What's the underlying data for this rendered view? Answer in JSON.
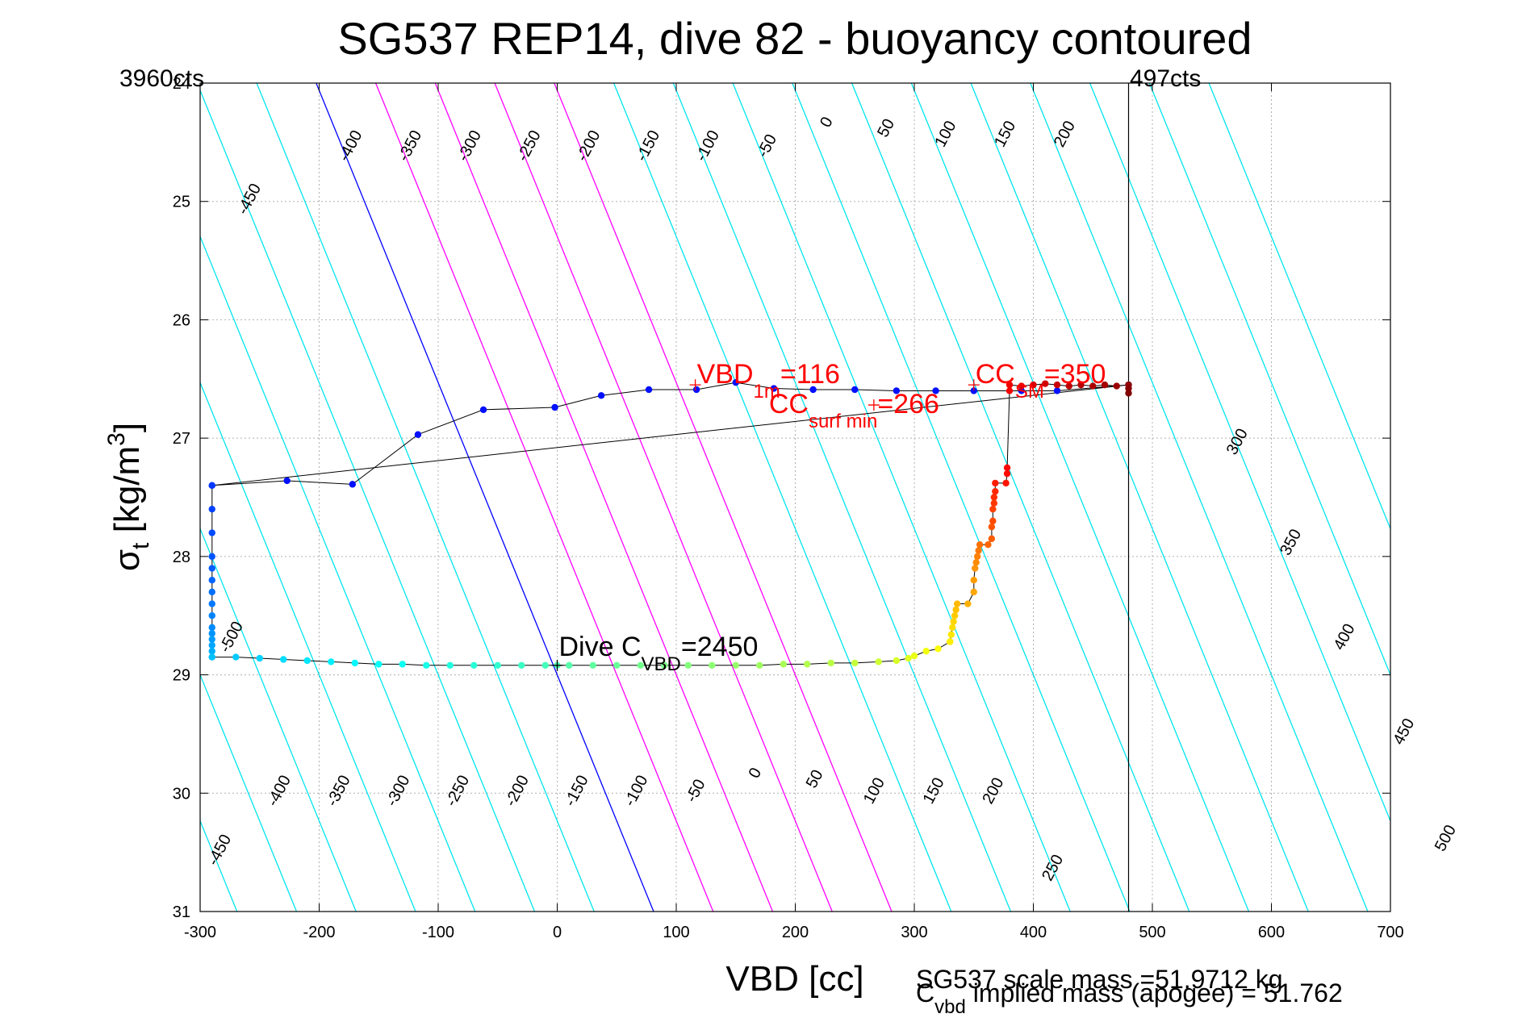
{
  "chart_data": {
    "type": "scatter",
    "title": "SG537 REP14, dive 82 - buoyancy contoured",
    "xlabel": "VBD [cc]",
    "ylabel": {
      "base": "σ",
      "sub": "t",
      "unit_pre": " [kg/m",
      "unit_sup": "3",
      "unit_post": "]"
    },
    "xlim": [
      -300,
      700
    ],
    "ylim": [
      31,
      24
    ],
    "y_reversed": true,
    "x_ticks": [
      -300,
      -200,
      -100,
      0,
      100,
      200,
      300,
      400,
      500,
      600,
      700
    ],
    "y_ticks": [
      24,
      25,
      26,
      27,
      28,
      29,
      30,
      31
    ],
    "grid": true,
    "corner_labels": {
      "left": "3960cts",
      "right": "497cts"
    },
    "contours": {
      "slope_cc_per_sigma": 40.5,
      "reference": {
        "x": 0,
        "y": 29
      },
      "spacing_cc": 50,
      "levels": [
        -500,
        -450,
        -400,
        -350,
        -300,
        -250,
        -200,
        -150,
        -100,
        -50,
        0,
        50,
        100,
        150,
        200,
        250,
        300,
        350,
        400,
        450,
        500,
        550,
        600,
        650,
        700,
        750
      ],
      "neutral_color": "#0000ff",
      "negative_color": "#00e5ee",
      "positive_color": "#ff00ff",
      "positive_limit": 200,
      "labels_top": [
        {
          "level": -450,
          "x": -255,
          "y": 25.0
        },
        {
          "level": -400,
          "x": -170,
          "y": 24.55
        },
        {
          "level": -350,
          "x": -120,
          "y": 24.55
        },
        {
          "level": -300,
          "x": -70,
          "y": 24.55
        },
        {
          "level": -250,
          "x": -20,
          "y": 24.55
        },
        {
          "level": -200,
          "x": 30,
          "y": 24.55
        },
        {
          "level": -150,
          "x": 80,
          "y": 24.55
        },
        {
          "level": -100,
          "x": 130,
          "y": 24.55
        },
        {
          "level": -50,
          "x": 180,
          "y": 24.55
        },
        {
          "level": 0,
          "x": 230,
          "y": 24.35
        },
        {
          "level": 50,
          "x": 280,
          "y": 24.4
        },
        {
          "level": 100,
          "x": 330,
          "y": 24.45
        },
        {
          "level": 150,
          "x": 380,
          "y": 24.45
        },
        {
          "level": 200,
          "x": 430,
          "y": 24.45
        },
        {
          "level": 300,
          "x": 575,
          "y": 27.05
        },
        {
          "level": 350,
          "x": 620,
          "y": 27.9
        },
        {
          "level": 400,
          "x": 665,
          "y": 28.7
        },
        {
          "level": 450,
          "x": 715,
          "y": 29.5
        },
        {
          "level": 500,
          "x": 750,
          "y": 30.4
        }
      ],
      "labels_bottom": [
        {
          "level": -500,
          "x": -270,
          "y": 28.7
        },
        {
          "level": -450,
          "x": -280,
          "y": 30.5
        },
        {
          "level": -400,
          "x": -230,
          "y": 30.0
        },
        {
          "level": -350,
          "x": -180,
          "y": 30.0
        },
        {
          "level": -300,
          "x": -130,
          "y": 30.0
        },
        {
          "level": -250,
          "x": -80,
          "y": 30.0
        },
        {
          "level": -200,
          "x": -30,
          "y": 30.0
        },
        {
          "level": -150,
          "x": 20,
          "y": 30.0
        },
        {
          "level": -100,
          "x": 70,
          "y": 30.0
        },
        {
          "level": -50,
          "x": 120,
          "y": 30.0
        },
        {
          "level": 0,
          "x": 170,
          "y": 29.85
        },
        {
          "level": 50,
          "x": 220,
          "y": 29.9
        },
        {
          "level": 100,
          "x": 270,
          "y": 30.0
        },
        {
          "level": 150,
          "x": 320,
          "y": 30.0
        },
        {
          "level": 200,
          "x": 370,
          "y": 30.0
        },
        {
          "level": 250,
          "x": 420,
          "y": 30.65
        }
      ]
    },
    "vertical_line_x": 480,
    "annotations": [
      {
        "id": "vbd1m",
        "base": "VBD",
        "sub": "1m",
        "value": "=116",
        "x": 116,
        "y": 26.55,
        "color": "#ff0000"
      },
      {
        "id": "ccsm",
        "base": "CC",
        "sub": "SM",
        "value": "=350",
        "x": 350,
        "y": 26.55,
        "color": "#ff0000"
      },
      {
        "id": "ccsurf",
        "base": "CC",
        "sub": "surf min",
        "value": "=266",
        "x": 266,
        "y": 26.72,
        "color": "#ff0000"
      },
      {
        "id": "divecvbd",
        "base": "Dive C",
        "sub": "VBD",
        "value": "=2450",
        "x": 0,
        "y": 28.92,
        "color": "#000000"
      }
    ],
    "footer": {
      "scale_mass": "SG537 scale mass =51.9712 kg",
      "implied_base": "C",
      "implied_sub": "vbd",
      "implied_rest": " implied mass (apogee) = 51.762"
    },
    "series": [
      {
        "name": "upper",
        "x": [
          -290,
          -227,
          -172,
          -117,
          -62,
          -2,
          37,
          77,
          117,
          150,
          182,
          215,
          250,
          285,
          318,
          350,
          390,
          420,
          480
        ],
        "y": [
          27.4,
          27.36,
          27.39,
          26.97,
          26.76,
          26.74,
          26.64,
          26.59,
          26.59,
          26.53,
          26.58,
          26.59,
          26.59,
          26.6,
          26.6,
          26.6,
          26.6,
          26.6,
          26.55
        ]
      },
      {
        "name": "left",
        "x": [
          -290,
          -290,
          -290,
          -290,
          -290,
          -290,
          -290,
          -290,
          -290,
          -290,
          -290,
          -290,
          -290,
          -290,
          -290
        ],
        "y": [
          27.4,
          27.6,
          27.8,
          28.0,
          28.1,
          28.2,
          28.3,
          28.4,
          28.5,
          28.6,
          28.65,
          28.7,
          28.75,
          28.8,
          28.85
        ]
      },
      {
        "name": "bottom",
        "x": [
          -290,
          -270,
          -250,
          -230,
          -210,
          -190,
          -170,
          -150,
          -130,
          -110,
          -90,
          -70,
          -50,
          -30,
          -10,
          0,
          10,
          30,
          50,
          70,
          90,
          110,
          130,
          150,
          170,
          190,
          210,
          230,
          250,
          270,
          285,
          295,
          300,
          310,
          320,
          330
        ],
        "y": [
          28.85,
          28.85,
          28.86,
          28.87,
          28.88,
          28.89,
          28.9,
          28.91,
          28.91,
          28.92,
          28.92,
          28.92,
          28.92,
          28.92,
          28.92,
          28.92,
          28.92,
          28.92,
          28.92,
          28.92,
          28.92,
          28.92,
          28.92,
          28.92,
          28.92,
          28.91,
          28.91,
          28.9,
          28.9,
          28.89,
          28.88,
          28.86,
          28.84,
          28.8,
          28.78,
          28.72
        ]
      },
      {
        "name": "climb",
        "x": [
          330,
          331,
          332,
          333,
          334,
          335,
          336,
          345,
          350,
          350,
          351,
          352,
          353,
          354,
          355,
          362,
          365,
          365,
          366,
          366,
          367,
          367,
          368,
          368,
          377,
          378,
          378,
          380
        ],
        "y": [
          28.72,
          28.66,
          28.6,
          28.55,
          28.5,
          28.45,
          28.4,
          28.4,
          28.3,
          28.2,
          28.1,
          28.05,
          28.0,
          27.95,
          27.9,
          27.9,
          27.85,
          27.75,
          27.7,
          27.6,
          27.55,
          27.5,
          27.45,
          27.38,
          27.38,
          27.3,
          27.25,
          26.6
        ]
      },
      {
        "name": "top",
        "x": [
          380,
          390,
          400,
          410,
          420,
          430,
          440,
          450,
          460,
          470,
          480,
          480,
          480
        ],
        "y": [
          26.55,
          26.56,
          26.55,
          26.54,
          26.55,
          26.56,
          26.55,
          26.56,
          26.55,
          26.56,
          26.55,
          26.58,
          26.62
        ]
      }
    ]
  }
}
